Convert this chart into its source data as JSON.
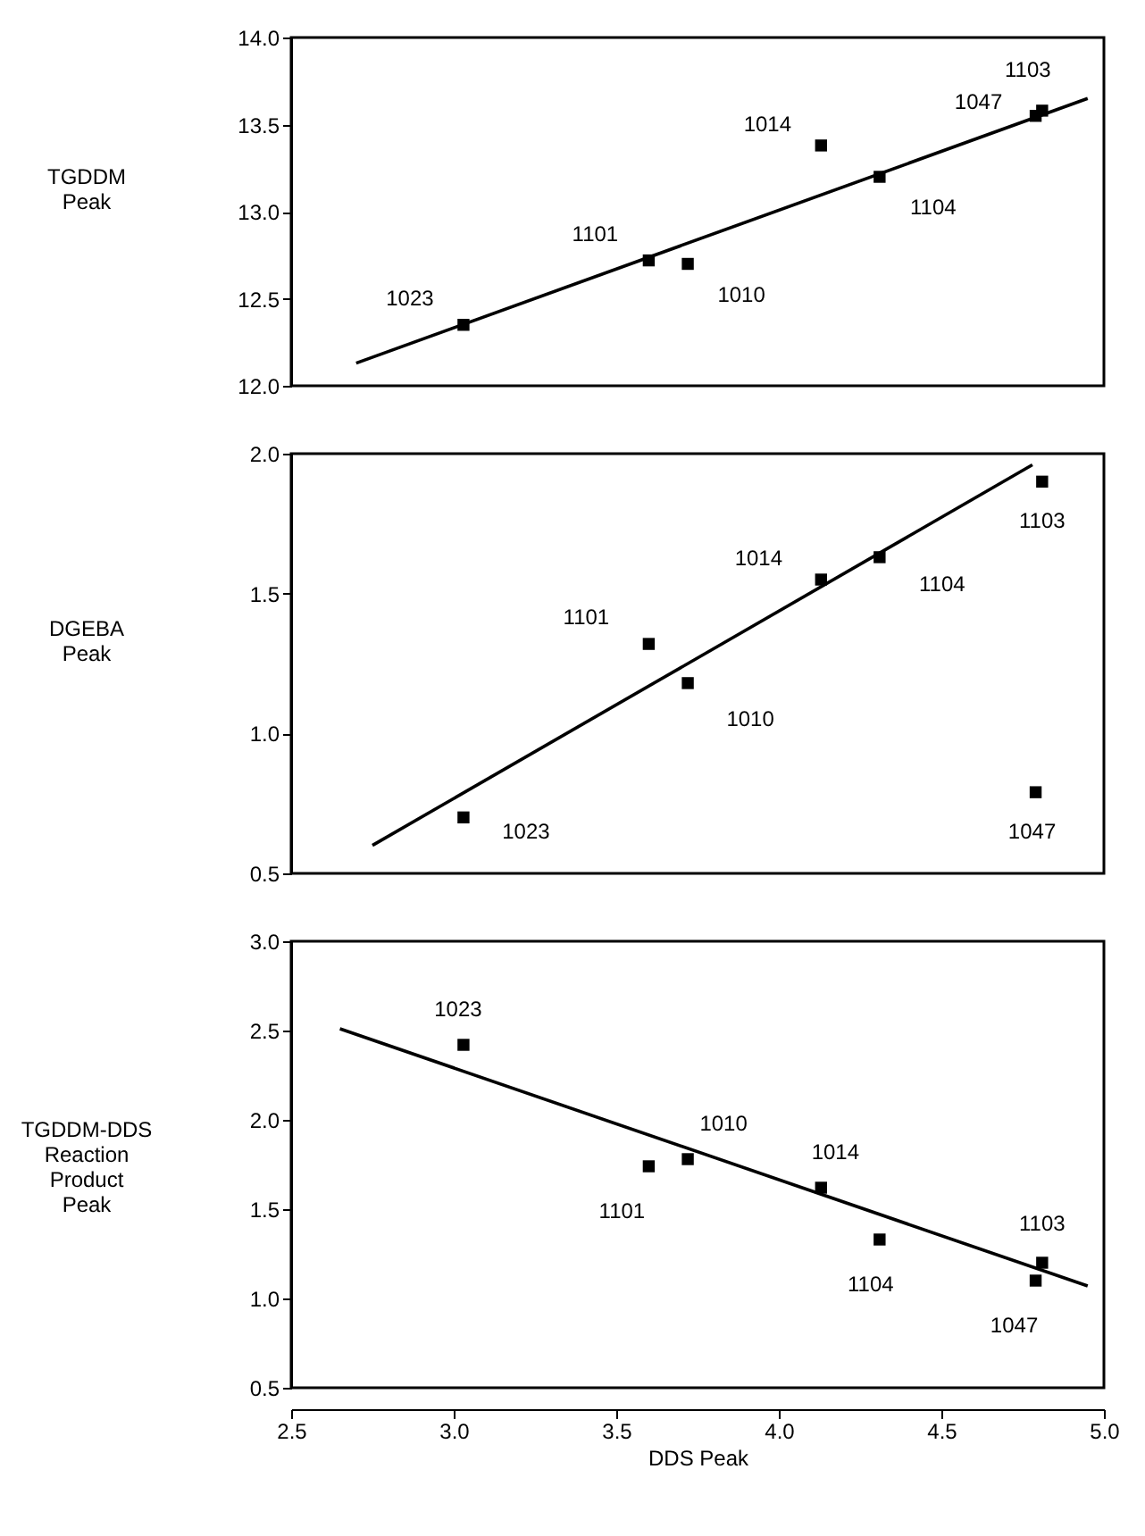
{
  "chart_data": [
    {
      "type": "scatter",
      "ylabel": "TGDDM Peak",
      "xlim": [
        2.5,
        5.0
      ],
      "xticks": [
        2.5,
        3,
        3.5,
        4,
        4.5,
        5
      ],
      "ylim": [
        12.0,
        14.0
      ],
      "yticks": [
        {
          "value": 12,
          "label": "12.0"
        },
        12.5,
        {
          "value": 13,
          "label": "13.0"
        },
        13.5,
        {
          "value": 14,
          "label": "14.0"
        }
      ],
      "grid": false,
      "tick_labels": "y",
      "series": [
        {
          "color": "#000000",
          "marker": "square",
          "x": [
            3.03,
            3.6,
            3.72,
            4.13,
            4.31,
            4.81,
            4.79
          ],
          "values": [
            12.35,
            12.72,
            12.7,
            13.38,
            13.2,
            13.58,
            13.55
          ]
        },
        {
          "type": "line",
          "marker": "none",
          "color": "#000000",
          "x": [
            2.7,
            4.95
          ],
          "values": [
            12.13,
            13.65
          ]
        }
      ],
      "annotations": [
        {
          "text": "1023",
          "x": 3.03,
          "y": 12.35
        },
        {
          "text": "1101",
          "x": 3.6,
          "y": 12.72
        },
        {
          "text": "1010",
          "x": 3.72,
          "y": 12.7
        },
        {
          "text": "1014",
          "x": 4.13,
          "y": 13.38
        },
        {
          "text": "1104",
          "x": 4.31,
          "y": 13.2
        },
        {
          "text": "1103",
          "x": 4.81,
          "y": 13.58
        },
        {
          "text": "1047",
          "x": 4.79,
          "y": 13.55
        }
      ]
    },
    {
      "type": "scatter",
      "ylabel": "DGEBA Peak",
      "xlim": [
        2.5,
        5.0
      ],
      "xticks": [
        2.5,
        3,
        3.5,
        4,
        4.5,
        5
      ],
      "ylim": [
        0.5,
        2.0
      ],
      "yticks": [
        0.5,
        {
          "value": 1,
          "label": "1.0"
        },
        1.5,
        {
          "value": 2,
          "label": "2.0"
        }
      ],
      "grid": false,
      "tick_labels": "y",
      "series": [
        {
          "color": "#000000",
          "marker": "square",
          "x": [
            3.03,
            3.6,
            3.72,
            4.13,
            4.31,
            4.81,
            4.79
          ],
          "values": [
            0.7,
            1.32,
            1.18,
            1.55,
            1.63,
            1.9,
            0.79
          ]
        },
        {
          "type": "line",
          "marker": "none",
          "color": "#000000",
          "x": [
            2.75,
            4.78
          ],
          "values": [
            0.6,
            1.96
          ]
        }
      ],
      "annotations": [
        {
          "text": "1023",
          "x": 3.03,
          "y": 0.7
        },
        {
          "text": "1101",
          "x": 3.6,
          "y": 1.32
        },
        {
          "text": "1010",
          "x": 3.72,
          "y": 1.18
        },
        {
          "text": "1014",
          "x": 4.13,
          "y": 1.55
        },
        {
          "text": "1104",
          "x": 4.31,
          "y": 1.63
        },
        {
          "text": "1103",
          "x": 4.81,
          "y": 1.9
        },
        {
          "text": "1047",
          "x": 4.79,
          "y": 0.79
        }
      ]
    },
    {
      "type": "scatter",
      "xlabel": "DDS Peak",
      "ylabel": "TGDDM-DDS Reaction Product Peak",
      "xlim": [
        2.5,
        5.0
      ],
      "xticks": [
        2.5,
        {
          "value": 3,
          "label": "3.0"
        },
        3.5,
        {
          "value": 4,
          "label": "4.0"
        },
        4.5,
        {
          "value": 5,
          "label": "5.0"
        }
      ],
      "ylim": [
        0.5,
        3.0
      ],
      "yticks": [
        0.5,
        {
          "value": 1,
          "label": "1.0"
        },
        1.5,
        {
          "value": 2,
          "label": "2.0"
        },
        2.5,
        {
          "value": 3,
          "label": "3.0"
        }
      ],
      "grid": false,
      "series": [
        {
          "color": "#000000",
          "marker": "square",
          "x": [
            3.03,
            3.6,
            3.72,
            4.13,
            4.31,
            4.81,
            4.79
          ],
          "values": [
            2.42,
            1.74,
            1.78,
            1.62,
            1.33,
            1.2,
            1.1
          ]
        },
        {
          "type": "line",
          "marker": "none",
          "color": "#000000",
          "x": [
            2.65,
            4.95
          ],
          "values": [
            2.51,
            1.07
          ]
        }
      ],
      "annotations": [
        {
          "text": "1023",
          "x": 3.03,
          "y": 2.42
        },
        {
          "text": "1101",
          "x": 3.6,
          "y": 1.74
        },
        {
          "text": "1010",
          "x": 3.72,
          "y": 1.78
        },
        {
          "text": "1014",
          "x": 4.13,
          "y": 1.62
        },
        {
          "text": "1104",
          "x": 4.31,
          "y": 1.33
        },
        {
          "text": "1103",
          "x": 4.81,
          "y": 1.2
        },
        {
          "text": "1047",
          "x": 4.79,
          "y": 1.1
        }
      ]
    }
  ]
}
